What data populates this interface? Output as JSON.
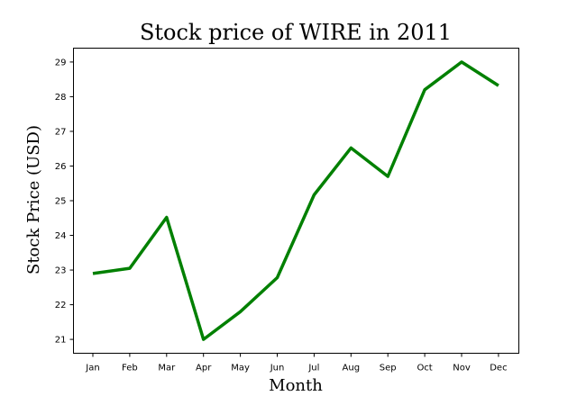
{
  "chart_data": {
    "type": "line",
    "title": "Stock price of WIRE in 2011",
    "xlabel": "Month",
    "ylabel": "Stock Price (USD)",
    "categories": [
      "Jan",
      "Feb",
      "Mar",
      "Apr",
      "May",
      "Jun",
      "Jul",
      "Aug",
      "Sep",
      "Oct",
      "Nov",
      "Dec"
    ],
    "series": [
      {
        "values": [
          22.9,
          23.05,
          24.52,
          21.0,
          21.8,
          22.78,
          25.17,
          26.52,
          25.7,
          28.2,
          29.0,
          28.32
        ],
        "color": "#008000"
      }
    ],
    "yticks": [
      21,
      22,
      23,
      24,
      25,
      26,
      27,
      28,
      29
    ],
    "ylim": [
      20.6,
      29.4
    ],
    "grid": false,
    "legend": "none"
  }
}
